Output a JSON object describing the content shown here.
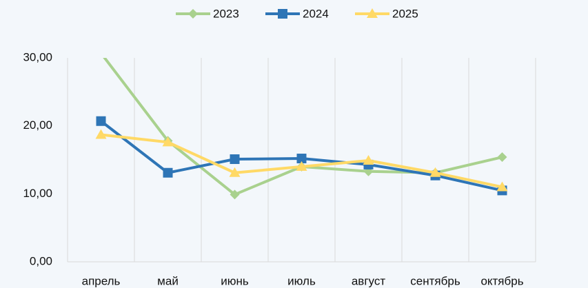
{
  "chart_data": {
    "type": "line",
    "categories": [
      "апрель",
      "май",
      "июнь",
      "июль",
      "август",
      "сентябрь",
      "октябрь"
    ],
    "series": [
      {
        "name": "2023",
        "color": "#a9d18e",
        "marker": "diamond",
        "values": [
          30.7,
          17.8,
          9.9,
          14.0,
          13.3,
          13.1,
          15.4
        ]
      },
      {
        "name": "2024",
        "color": "#2e75b6",
        "marker": "square",
        "values": [
          20.7,
          13.1,
          15.1,
          15.2,
          14.3,
          12.7,
          10.5
        ]
      },
      {
        "name": "2025",
        "color": "#ffd966",
        "marker": "triangle",
        "values": [
          18.7,
          17.6,
          13.1,
          14.0,
          14.9,
          13.1,
          11.0
        ]
      }
    ],
    "ylim": [
      0,
      30
    ],
    "yticks": [
      {
        "value": 0,
        "label": "0,00"
      },
      {
        "value": 10,
        "label": "10,00"
      },
      {
        "value": 20,
        "label": "20,00"
      },
      {
        "value": 30,
        "label": "30,00"
      }
    ],
    "grid": "vertical",
    "legend": "top"
  }
}
